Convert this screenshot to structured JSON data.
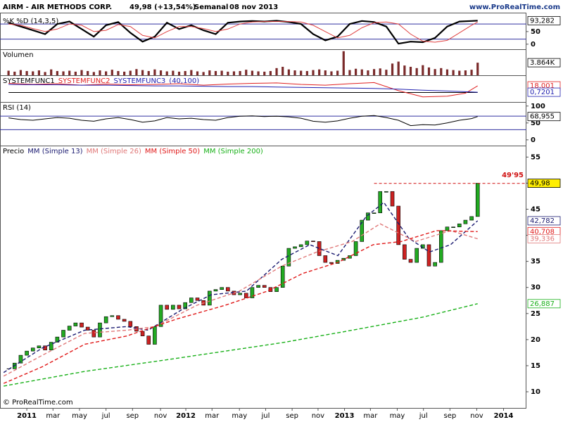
{
  "header": {
    "symbol": "AIRM - AIR METHODS CORP.",
    "price": "49,98 (+13,54%)",
    "period": "Semanal",
    "date": "08 nov 2013",
    "site": "www.ProRealTime.com",
    "footer": "© ProRealTime.com"
  },
  "chart_data": [
    {
      "type": "line",
      "title": "%K %D (14,3,5)",
      "xlim": [
        -8.8,
        164
      ],
      "ylim": [
        -20,
        125
      ],
      "yticks": [
        0,
        50
      ],
      "hlines": [
        80,
        20
      ],
      "hline_color": "#3030a0",
      "x": [
        -6,
        -2,
        2,
        6,
        10,
        14,
        18,
        22,
        26,
        30,
        34,
        38,
        42,
        46,
        50,
        54,
        58,
        62,
        66,
        70,
        74,
        78,
        82,
        86,
        90,
        94,
        98,
        102,
        106,
        110,
        114,
        118,
        122,
        126,
        130,
        134,
        138,
        142,
        146,
        148
      ],
      "series": [
        {
          "color": "#000000",
          "width": 2.2,
          "values": [
            85,
            70,
            55,
            40,
            80,
            90,
            60,
            30,
            75,
            88,
            45,
            10,
            30,
            85,
            60,
            75,
            55,
            40,
            85,
            90,
            92,
            90,
            93,
            88,
            80,
            40,
            15,
            30,
            80,
            92,
            88,
            70,
            2,
            10,
            8,
            25,
            70,
            90,
            92,
            93.282
          ]
        },
        {
          "color": "#e04040",
          "width": 1,
          "values": [
            80,
            75,
            62,
            50,
            60,
            80,
            75,
            50,
            55,
            78,
            70,
            35,
            25,
            50,
            70,
            70,
            62,
            50,
            60,
            80,
            88,
            90,
            90,
            90,
            88,
            75,
            50,
            25,
            35,
            65,
            85,
            88,
            80,
            40,
            12,
            8,
            15,
            45,
            75,
            88
          ]
        }
      ],
      "right_labels": [
        {
          "value": 93.282,
          "label": "93,282",
          "color": "#000000",
          "fill": "#ffffff"
        }
      ]
    },
    {
      "type": "bar",
      "title": "Volumen",
      "xlim": [
        -8.8,
        164
      ],
      "ylim": [
        0,
        8000
      ],
      "color": "#7a2a2a",
      "x": [
        -6,
        -4,
        -2,
        0,
        2,
        4,
        6,
        8,
        10,
        12,
        14,
        16,
        18,
        20,
        22,
        24,
        26,
        28,
        30,
        32,
        34,
        36,
        38,
        40,
        42,
        44,
        46,
        48,
        50,
        52,
        54,
        56,
        58,
        60,
        62,
        64,
        66,
        68,
        70,
        72,
        74,
        76,
        78,
        80,
        82,
        84,
        86,
        88,
        90,
        92,
        94,
        96,
        98,
        100,
        102,
        104,
        106,
        108,
        110,
        112,
        114,
        116,
        118,
        120,
        122,
        124,
        126,
        128,
        130,
        132,
        134,
        136,
        138,
        140,
        142,
        144,
        146,
        148
      ],
      "values": [
        1400,
        1100,
        1600,
        1300,
        1200,
        1500,
        1000,
        1800,
        1300,
        1200,
        1400,
        1100,
        1600,
        1300,
        1000,
        1500,
        1200,
        1700,
        1300,
        1100,
        1400,
        1900,
        1600,
        1300,
        1800,
        1500,
        1200,
        1400,
        1100,
        1300,
        1600,
        1200,
        1000,
        1500,
        1300,
        1400,
        1100,
        1200,
        1300,
        1700,
        1400,
        1200,
        1100,
        1300,
        2200,
        2600,
        1800,
        1500,
        1400,
        1300,
        1600,
        1800,
        1500,
        1200,
        1400,
        7400,
        1600,
        2000,
        1800,
        1500,
        1900,
        2100,
        1700,
        3600,
        4200,
        3000,
        2600,
        2200,
        3100,
        2400,
        1900,
        2200,
        1800,
        1600,
        1400,
        1500,
        1700,
        3864
      ],
      "right_labels": [
        {
          "value": 3864,
          "label": "3.864K",
          "color": "#000000",
          "fill": "#ffffff"
        }
      ]
    },
    {
      "type": "line",
      "params": "(40,100)",
      "xlim": [
        -8.8,
        164
      ],
      "ylim": [
        -26,
        47
      ],
      "series": [
        {
          "name": "SYSTEMFUNC1",
          "color": "#000000",
          "width": 1,
          "x": [
            -6,
            148
          ],
          "values": [
            0,
            0
          ]
        },
        {
          "name": "SYSTEMFUNC2",
          "color": "#e02020",
          "width": 1,
          "x": [
            -6,
            2,
            10,
            18,
            26,
            34,
            42,
            50,
            58,
            66,
            74,
            82,
            90,
            98,
            106,
            114,
            122,
            130,
            138,
            144,
            148
          ],
          "values": [
            25,
            22,
            24,
            20,
            23,
            21,
            22,
            24,
            20,
            23,
            25,
            26,
            22,
            20,
            24,
            27,
            5,
            -12,
            -10,
            -2,
            18.001
          ]
        },
        {
          "name": "SYSTEMFUNC3",
          "color": "#2020b0",
          "width": 1,
          "x": [
            -6,
            2,
            10,
            18,
            26,
            34,
            42,
            50,
            58,
            66,
            74,
            82,
            90,
            98,
            106,
            114,
            122,
            130,
            138,
            144,
            148
          ],
          "values": [
            22,
            21,
            21,
            20,
            20,
            19,
            18,
            18,
            17,
            16,
            16,
            15,
            14,
            13,
            12,
            11,
            9,
            6,
            4,
            2,
            0.7201
          ]
        }
      ],
      "right_labels": [
        {
          "value": 18.001,
          "label": "18,001",
          "color": "#e02020",
          "fill": "#ffffff"
        },
        {
          "value": 0.7201,
          "label": "0,7201",
          "color": "#2020b0",
          "fill": "#ffffff"
        }
      ]
    },
    {
      "type": "line",
      "title": "RSI (14)",
      "xlim": [
        -8.8,
        164
      ],
      "ylim": [
        -17,
        112
      ],
      "yticks": [
        0,
        50,
        100
      ],
      "hlines": [
        70,
        30
      ],
      "hline_color": "#3030a0",
      "x": [
        -6,
        -2,
        2,
        6,
        10,
        14,
        18,
        22,
        26,
        30,
        34,
        38,
        42,
        46,
        50,
        54,
        58,
        62,
        66,
        70,
        74,
        78,
        82,
        86,
        90,
        94,
        98,
        102,
        106,
        110,
        114,
        118,
        122,
        126,
        130,
        134,
        138,
        142,
        146,
        148
      ],
      "series": [
        {
          "color": "#000000",
          "width": 1,
          "values": [
            65,
            60,
            58,
            62,
            66,
            64,
            58,
            55,
            62,
            66,
            60,
            52,
            56,
            66,
            62,
            64,
            60,
            58,
            66,
            70,
            71,
            69,
            70,
            68,
            64,
            55,
            52,
            56,
            64,
            70,
            72,
            66,
            58,
            42,
            45,
            44,
            50,
            58,
            63,
            68.955
          ]
        }
      ],
      "right_labels": [
        {
          "value": 68.955,
          "label": "68,955",
          "color": "#000000",
          "fill": "#ffffff"
        }
      ]
    },
    {
      "type": "candlestick",
      "xlim": [
        -8.8,
        164
      ],
      "ylim": [
        6.9,
        57.2
      ],
      "yticks": [
        10,
        15,
        20,
        25,
        30,
        35,
        40,
        45,
        50,
        55
      ],
      "xticks": [
        {
          "value": 0,
          "label": "2011"
        },
        {
          "value": 8.6,
          "label": "mar"
        },
        {
          "value": 17.3,
          "label": "may"
        },
        {
          "value": 26,
          "label": "jul"
        },
        {
          "value": 34.7,
          "label": "sep"
        },
        {
          "value": 43.9,
          "label": "nov"
        },
        {
          "value": 52.2,
          "label": "2012"
        },
        {
          "value": 60.8,
          "label": "mar"
        },
        {
          "value": 69.8,
          "label": "may"
        },
        {
          "value": 78.4,
          "label": "jul"
        },
        {
          "value": 87.1,
          "label": "sep"
        },
        {
          "value": 95.6,
          "label": "nov"
        },
        {
          "value": 104.3,
          "label": "2013"
        },
        {
          "value": 112.8,
          "label": "mar"
        },
        {
          "value": 121.6,
          "label": "may"
        },
        {
          "value": 130.2,
          "label": "jul"
        },
        {
          "value": 138.9,
          "label": "sep"
        },
        {
          "value": 147.7,
          "label": "nov"
        },
        {
          "value": 156.5,
          "label": "2014"
        }
      ],
      "series": [
        {
          "name": "Precio",
          "color": "#000000",
          "up_color": "#22aa22",
          "down_color": "#cc2222",
          "x": [
            -6,
            -4,
            -2,
            0,
            2,
            4,
            6,
            8,
            10,
            12,
            14,
            16,
            18,
            20,
            22,
            24,
            26,
            28,
            30,
            32,
            34,
            36,
            38,
            40,
            42,
            44,
            46,
            48,
            50,
            52,
            54,
            56,
            58,
            60,
            62,
            64,
            66,
            68,
            70,
            72,
            74,
            76,
            78,
            80,
            82,
            84,
            86,
            88,
            90,
            92,
            94,
            96,
            98,
            100,
            102,
            104,
            106,
            108,
            110,
            112,
            114,
            116,
            118,
            120,
            122,
            124,
            126,
            128,
            130,
            132,
            134,
            136,
            138,
            140,
            142,
            144,
            146,
            148
          ],
          "close": [
            14.4,
            15.5,
            17,
            17.8,
            18.4,
            18.8,
            18,
            19.5,
            20.5,
            21.8,
            22.6,
            23.2,
            22.4,
            21.8,
            20.5,
            23.2,
            24.4,
            24.6,
            23.9,
            23.5,
            22.5,
            21.6,
            20.7,
            19.1,
            22.5,
            26.6,
            25.8,
            26.6,
            25.9,
            27.1,
            28,
            27.5,
            26.6,
            29.3,
            29.6,
            30,
            29.3,
            28.6,
            28.9,
            28,
            30,
            30.4,
            30,
            29.2,
            30,
            34.1,
            37.5,
            37.8,
            38.2,
            38.9,
            38.8,
            36.1,
            34.8,
            34.6,
            35.2,
            35.6,
            36.1,
            38.8,
            42.9,
            44.3,
            44.3,
            48.4,
            48.4,
            45.6,
            38.2,
            35.4,
            34.8,
            37.5,
            38.2,
            34.1,
            34.8,
            40.9,
            41.6,
            41.6,
            42.2,
            42.9,
            43.6,
            49.98
          ]
        },
        {
          "name": "MM (Simple 13)",
          "color": "#1a1a70",
          "x": [
            -7.6,
            5.1,
            19,
            32.8,
            39.8,
            51.3,
            60.5,
            72.1,
            83.7,
            92.9,
            102.1,
            111.4,
            117.2,
            125.3,
            132.2,
            139.1,
            148
          ],
          "values": [
            13.7,
            18.4,
            21.8,
            22.5,
            21.8,
            25.9,
            28.6,
            29.3,
            35.4,
            38.2,
            36.1,
            43.6,
            46.3,
            39.5,
            36.8,
            38.2,
            42.782
          ]
        },
        {
          "name": "MM (Simple 26)",
          "color": "#e07878",
          "x": [
            -7.6,
            5.1,
            19,
            32.8,
            42.1,
            55.9,
            69.8,
            83.7,
            95.2,
            106.8,
            116,
            127.6,
            139.1,
            148
          ],
          "values": [
            13,
            17,
            21.2,
            21.8,
            22.5,
            26.6,
            29.3,
            34.1,
            36.8,
            38.8,
            42.2,
            38.8,
            40.9,
            39.336
          ]
        },
        {
          "name": "MM (Simple 50)",
          "color": "#e01818",
          "x": [
            -7.6,
            5.1,
            19,
            32.8,
            49,
            65.2,
            79,
            90.6,
            102.1,
            113.7,
            122.9,
            134.5,
            148
          ],
          "values": [
            11.6,
            14.8,
            19.1,
            20.7,
            23.9,
            26.6,
            29.3,
            32.7,
            34.8,
            38.2,
            38.8,
            40.9,
            40.708
          ]
        },
        {
          "name": "MM (Simple 200)",
          "color": "#18b018",
          "x": [
            -7.6,
            19,
            49,
            83.7,
            106.8,
            129.9,
            148
          ],
          "values": [
            11.1,
            13.9,
            16.4,
            19.4,
            21.8,
            24.3,
            26.887
          ]
        }
      ],
      "annotation": {
        "value": 49.95,
        "label": "49'95",
        "x": 114,
        "color": "#d01010"
      },
      "right_labels": [
        {
          "value": 49.98,
          "label": "49,98",
          "color": "#000000",
          "fill": "#ffee00"
        },
        {
          "value": 42.782,
          "label": "42,782",
          "color": "#1a1a70",
          "fill": "#ffffff"
        },
        {
          "value": 40.708,
          "label": "40,708",
          "color": "#e01818",
          "fill": "#ffffff"
        },
        {
          "value": 39.336,
          "label": "39,336",
          "color": "#e07878",
          "fill": "#ffffff"
        },
        {
          "value": 26.887,
          "label": "26,887",
          "color": "#18b018",
          "fill": "#ffffff"
        }
      ]
    }
  ]
}
